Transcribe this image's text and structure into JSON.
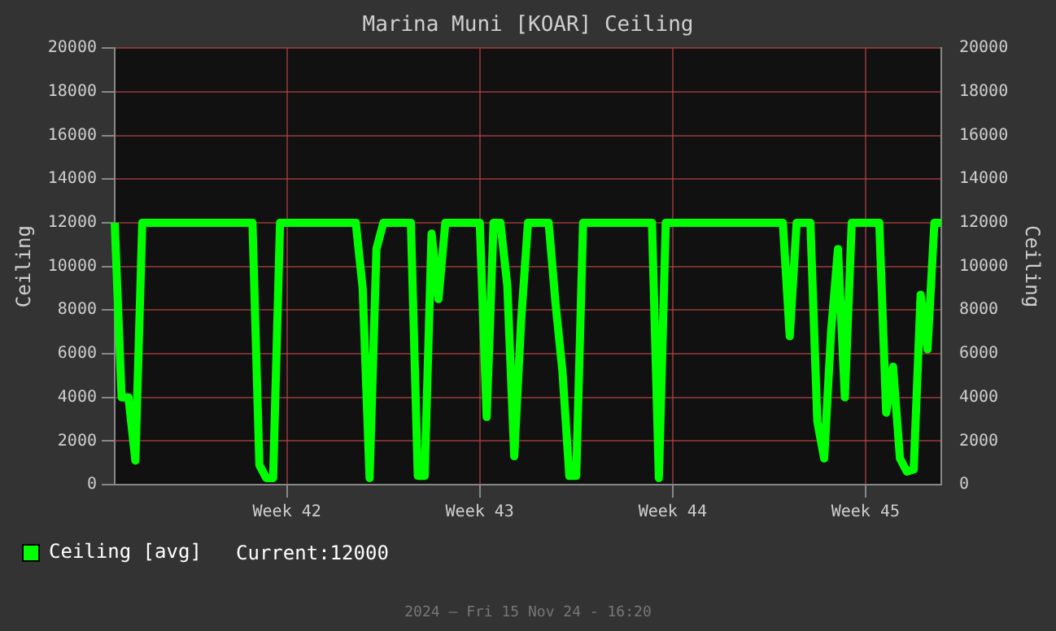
{
  "chart_data": {
    "type": "line",
    "title": "Marina Muni [KOAR] Ceiling",
    "ylabel": "Ceiling",
    "y2label": "Ceiling",
    "categories": [
      null,
      null,
      null,
      null,
      null,
      null,
      null,
      null,
      null,
      null,
      null,
      null,
      null,
      null,
      null,
      null,
      null,
      null,
      null,
      null,
      null,
      null,
      null,
      null,
      null,
      "Week 42",
      null,
      null,
      null,
      null,
      null,
      null,
      null,
      null,
      null,
      null,
      null,
      null,
      null,
      null,
      null,
      null,
      null,
      null,
      null,
      null,
      null,
      null,
      null,
      null,
      null,
      null,
      null,
      "Week 43",
      null,
      null,
      null,
      null,
      null,
      null,
      null,
      null,
      null,
      null,
      null,
      null,
      null,
      null,
      null,
      null,
      null,
      null,
      null,
      null,
      null,
      null,
      null,
      null,
      null,
      null,
      null,
      "Week 44",
      null,
      null,
      null,
      null,
      null,
      null,
      null,
      null,
      null,
      null,
      null,
      null,
      null,
      null,
      null,
      null,
      null,
      null,
      null,
      null,
      null,
      null,
      null,
      null,
      null,
      null,
      null,
      "Week 45",
      null,
      null,
      null,
      null,
      null,
      null,
      null,
      null,
      null,
      null,
      null
    ],
    "series": [
      {
        "name": "Ceiling [avg]",
        "color": "#00ff00",
        "values": [
          12000,
          4000,
          4000,
          1100,
          12000,
          12000,
          12000,
          12000,
          12000,
          12000,
          12000,
          12000,
          12000,
          12000,
          12000,
          12000,
          12000,
          12000,
          12000,
          12000,
          12000,
          900,
          300,
          300,
          12000,
          12000,
          12000,
          12000,
          12000,
          12000,
          12000,
          12000,
          12000,
          12000,
          12000,
          12000,
          9000,
          300,
          10800,
          12000,
          12000,
          12000,
          12000,
          12000,
          400,
          400,
          11500,
          8500,
          12000,
          12000,
          12000,
          12000,
          12000,
          12000,
          3100,
          12000,
          12000,
          9100,
          1300,
          7500,
          12000,
          12000,
          12000,
          12000,
          8300,
          5200,
          400,
          400,
          12000,
          12000,
          12000,
          12000,
          12000,
          12000,
          12000,
          12000,
          12000,
          12000,
          12000,
          300,
          12000,
          12000,
          12000,
          12000,
          12000,
          12000,
          12000,
          12000,
          12000,
          12000,
          12000,
          12000,
          12000,
          12000,
          12000,
          12000,
          12000,
          12000,
          6800,
          12000,
          12000,
          12000,
          2900,
          1200,
          7000,
          10800,
          4000,
          12000,
          12000,
          12000,
          12000,
          12000,
          3300,
          5400,
          1200,
          600,
          700,
          8700,
          6200,
          12000,
          12000
        ]
      }
    ],
    "ylim": [
      0,
      20000
    ],
    "yticks": [
      0,
      2000,
      4000,
      6000,
      8000,
      10000,
      12000,
      14000,
      16000,
      18000,
      20000
    ],
    "y2lim": [
      0,
      20000
    ],
    "y2ticks": [
      0,
      2000,
      4000,
      6000,
      8000,
      10000,
      12000,
      14000,
      16000,
      18000,
      20000
    ],
    "grid": true,
    "legend": "bottom left",
    "marker": "none",
    "line_style": "solid",
    "annotations": [
      "Current:12000",
      "2024 — Fri 15 Nov 24 - 16:20"
    ]
  }
}
